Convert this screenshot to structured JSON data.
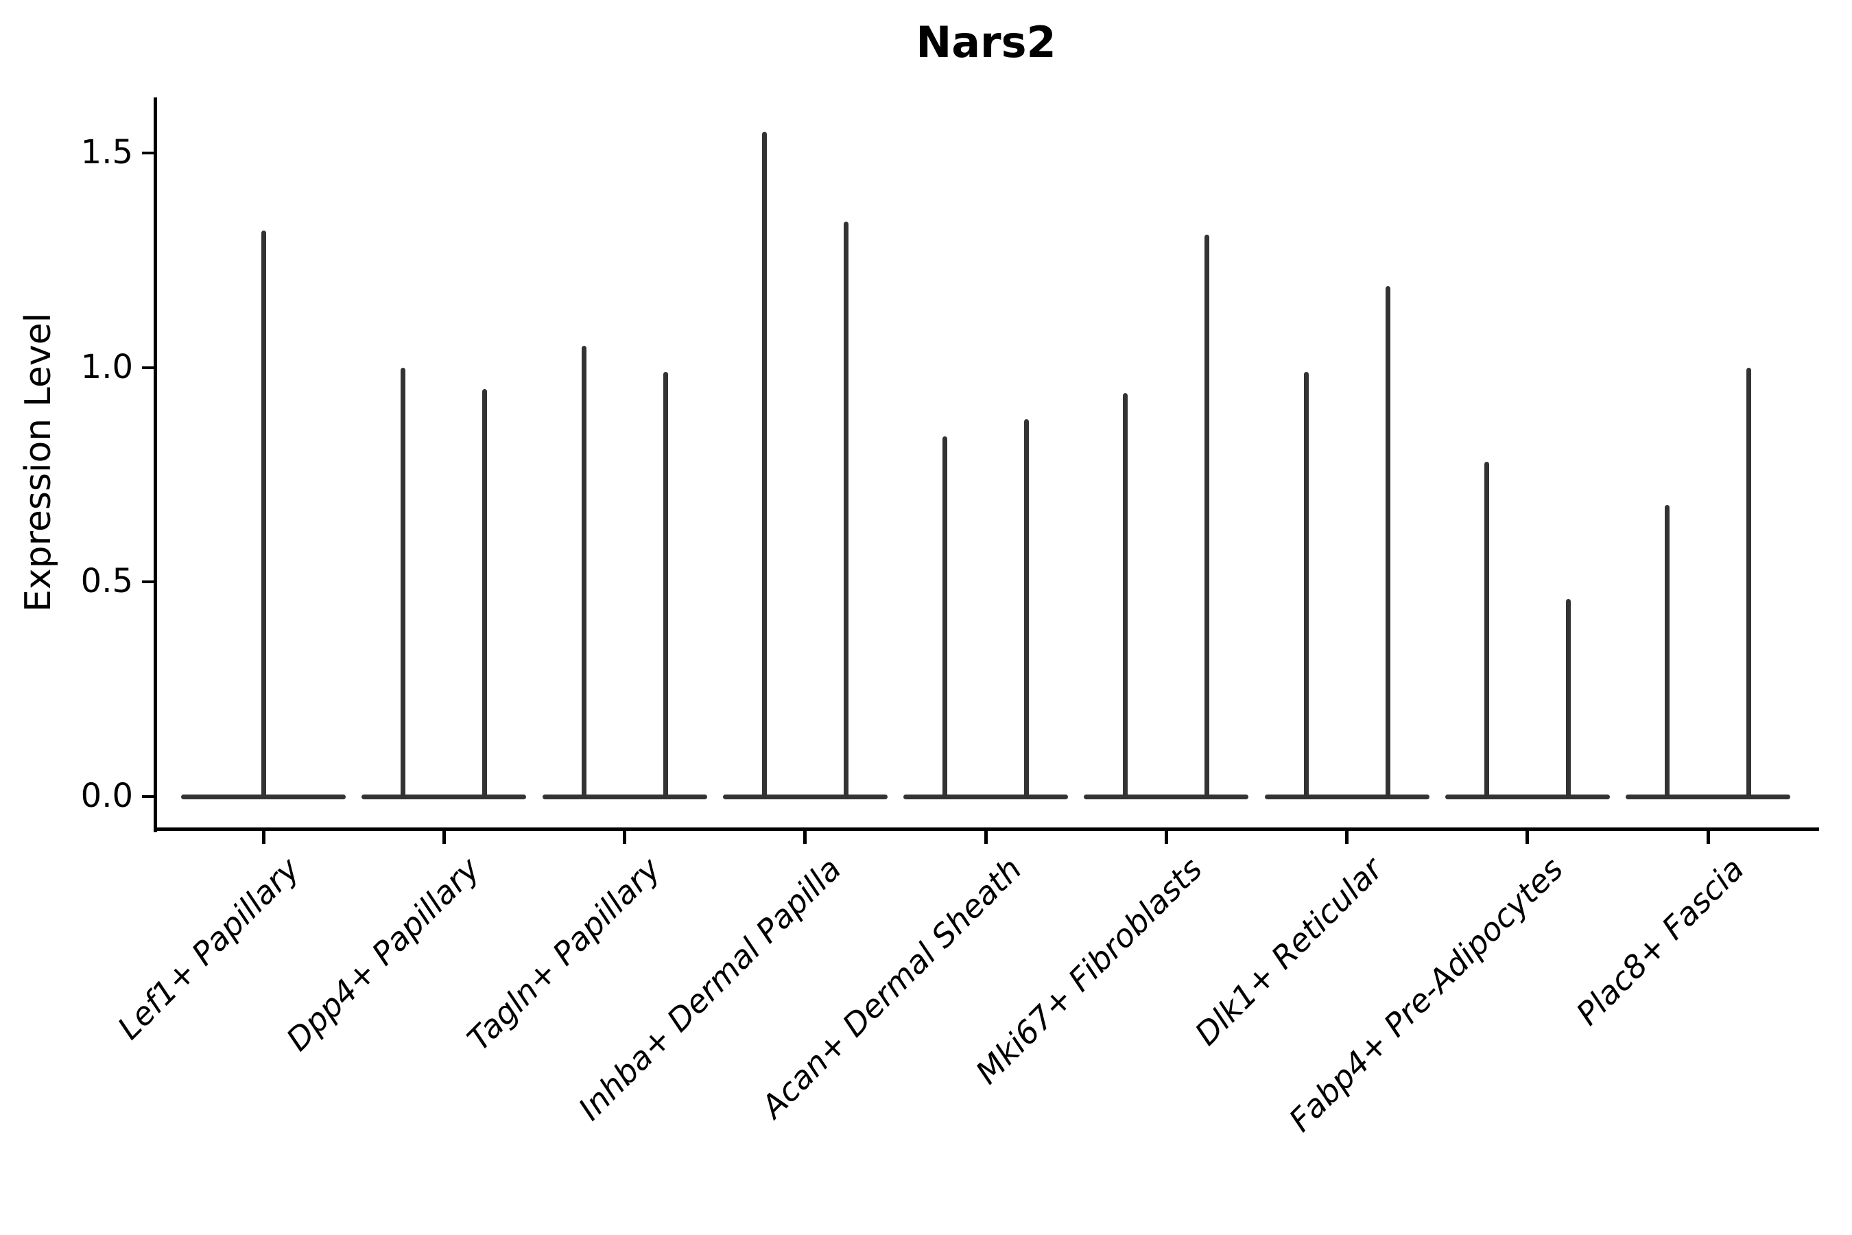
{
  "figure": {
    "title": "Nars2"
  },
  "y_axis": {
    "label": "Expression Level",
    "tick_labels": [
      "0.0",
      "0.5",
      "1.0",
      "1.5"
    ]
  },
  "chart_data": {
    "type": "violin",
    "title": "Nars2",
    "ylabel": "Expression Level",
    "xlabel": "",
    "ylim": [
      -0.08,
      1.63
    ],
    "yticks": [
      0.0,
      0.5,
      1.0,
      1.5
    ],
    "grid": false,
    "legend": "none",
    "violin_style": "flat baseline at 0 with thin vertical spike(s) up to the group maximum; two side-by-side violins per category except the first which has one centered spike",
    "categories": [
      "Lef1+ Papillary",
      "Dpp4+ Papillary",
      "Tagln+ Papillary",
      "Inhba+ Dermal Papilla",
      "Acan+ Dermal Sheath",
      "Mki67+ Fibroblasts",
      "Dlk1+ Reticular",
      "Fabp4+ Pre-Adipocytes",
      "Plac8+ Fascia"
    ],
    "series": [
      {
        "category": "Lef1+ Papillary",
        "baseline_value": 0.0,
        "spike_maxima": [
          1.32
        ]
      },
      {
        "category": "Dpp4+ Papillary",
        "baseline_value": 0.0,
        "spike_maxima": [
          1.0,
          0.95
        ]
      },
      {
        "category": "Tagln+ Papillary",
        "baseline_value": 0.0,
        "spike_maxima": [
          1.05,
          0.99
        ]
      },
      {
        "category": "Inhba+ Dermal Papilla",
        "baseline_value": 0.0,
        "spike_maxima": [
          1.55,
          1.34
        ]
      },
      {
        "category": "Acan+ Dermal Sheath",
        "baseline_value": 0.0,
        "spike_maxima": [
          0.84,
          0.88
        ]
      },
      {
        "category": "Mki67+ Fibroblasts",
        "baseline_value": 0.0,
        "spike_maxima": [
          0.94,
          1.31
        ]
      },
      {
        "category": "Dlk1+ Reticular",
        "baseline_value": 0.0,
        "spike_maxima": [
          0.99,
          1.19
        ]
      },
      {
        "category": "Fabp4+ Pre-Adipocytes",
        "baseline_value": 0.0,
        "spike_maxima": [
          0.78,
          0.46
        ]
      },
      {
        "category": "Plac8+ Fascia",
        "baseline_value": 0.0,
        "spike_maxima": [
          0.68,
          1.0
        ]
      }
    ]
  },
  "colors": {
    "violin": "#333333",
    "axis": "#000000",
    "text": "#000000",
    "background": "#ffffff"
  }
}
